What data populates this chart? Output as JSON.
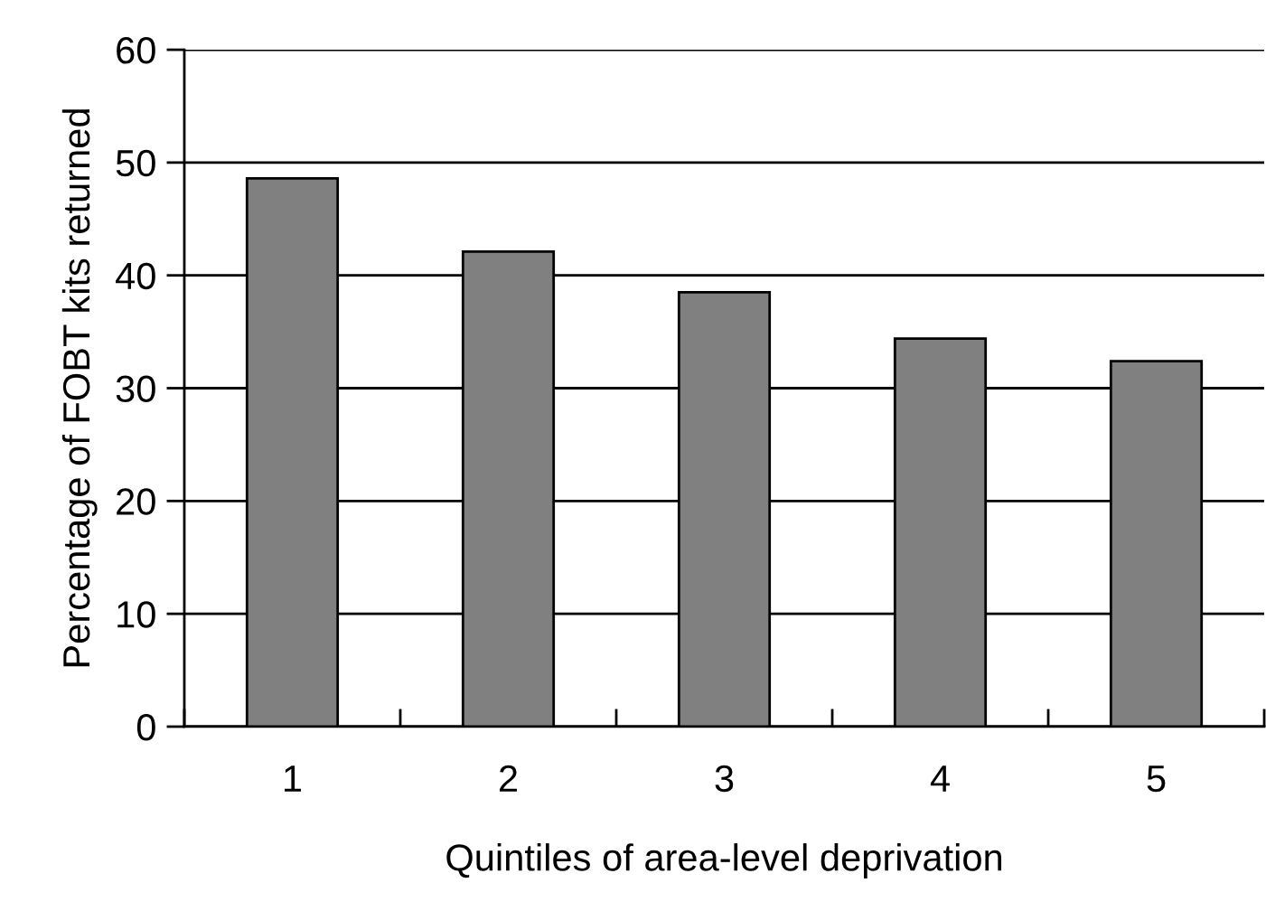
{
  "chart_data": {
    "type": "bar",
    "xlabel": "Quintiles of area-level deprivation",
    "ylabel": "Percentage of FOBT kits returned",
    "categories": [
      "1",
      "2",
      "3",
      "4",
      "5"
    ],
    "values": [
      48.6,
      42.1,
      38.5,
      34.4,
      32.4
    ],
    "color": "#808080",
    "ylim": [
      0,
      60
    ],
    "yticks": [
      0,
      10,
      20,
      30,
      40,
      50,
      60
    ],
    "grid": "y"
  }
}
